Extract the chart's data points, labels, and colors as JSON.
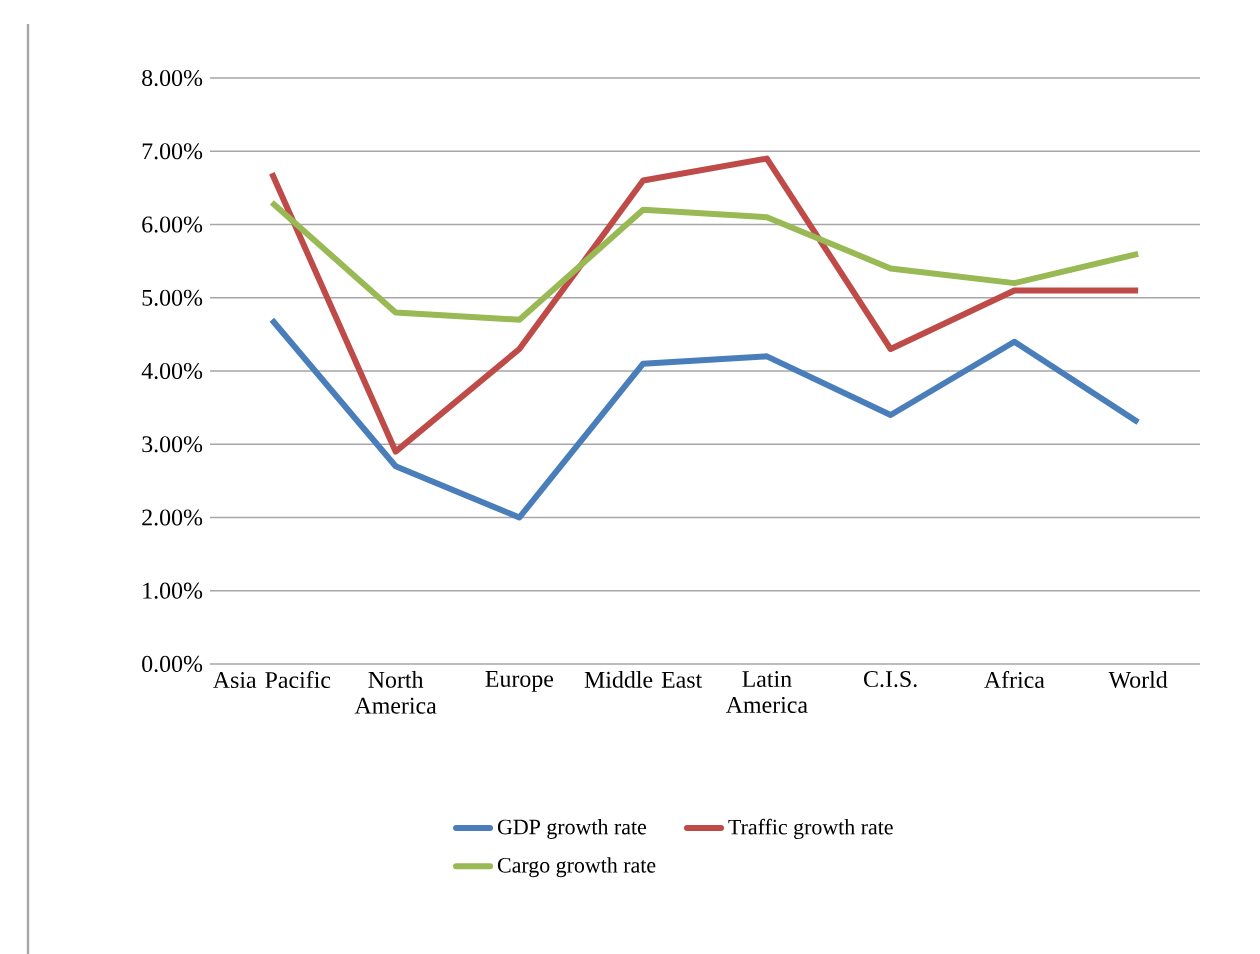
{
  "chart_data": {
    "type": "line",
    "categories": [
      "Asia Pacific",
      "North America",
      "Europe",
      "Middle East",
      "Latin America",
      "C.I.S.",
      "Africa",
      "World"
    ],
    "series": [
      {
        "name": "GDP growth rate",
        "color": "#4a7ebb",
        "values": [
          4.7,
          2.7,
          2.0,
          4.1,
          4.2,
          3.4,
          4.4,
          3.3
        ]
      },
      {
        "name": "Traffic growth rate",
        "color": "#be4b48",
        "values": [
          6.7,
          2.9,
          4.3,
          6.6,
          6.9,
          4.3,
          5.1,
          5.1
        ]
      },
      {
        "name": "Cargo growth rate",
        "color": "#98b954",
        "values": [
          6.3,
          4.8,
          4.7,
          6.2,
          6.1,
          5.4,
          5.2,
          5.6
        ]
      }
    ],
    "ylim": [
      0,
      8
    ],
    "yticks": [
      {
        "value": 0,
        "label": "0.00%"
      },
      {
        "value": 1,
        "label": "1.00%"
      },
      {
        "value": 2,
        "label": "2.00%"
      },
      {
        "value": 3,
        "label": "3.00%"
      },
      {
        "value": 4,
        "label": "4.00%"
      },
      {
        "value": 5,
        "label": "5.00%"
      },
      {
        "value": 6,
        "label": "6.00%"
      },
      {
        "value": 7,
        "label": "7.00%"
      },
      {
        "value": 8,
        "label": "8.00%"
      }
    ],
    "grid": "y",
    "legend": "bottom",
    "marker": "none",
    "line_style": "solid"
  }
}
